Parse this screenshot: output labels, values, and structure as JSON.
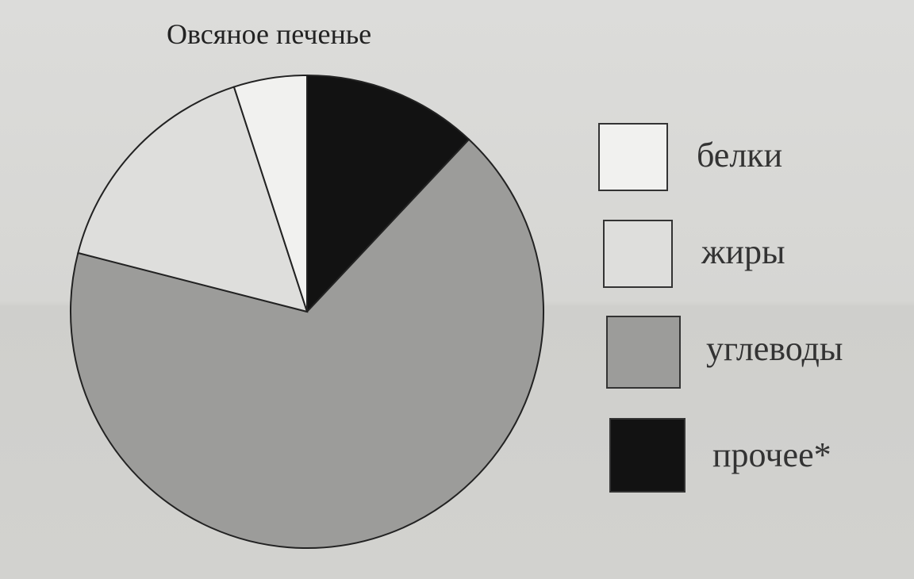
{
  "chart_data": {
    "type": "pie",
    "title": "Овсяное печенье",
    "legend_position": "right",
    "categories": [
      "белки",
      "жиры",
      "углеводы",
      "прочее*"
    ],
    "values": [
      5,
      16,
      67,
      12
    ],
    "colors": [
      "#f1f1ef",
      "#dededc",
      "#9c9c9a",
      "#121212"
    ],
    "slice_order_clockwise_from_top": [
      "прочее*",
      "углеводы",
      "жиры",
      "белки"
    ]
  }
}
